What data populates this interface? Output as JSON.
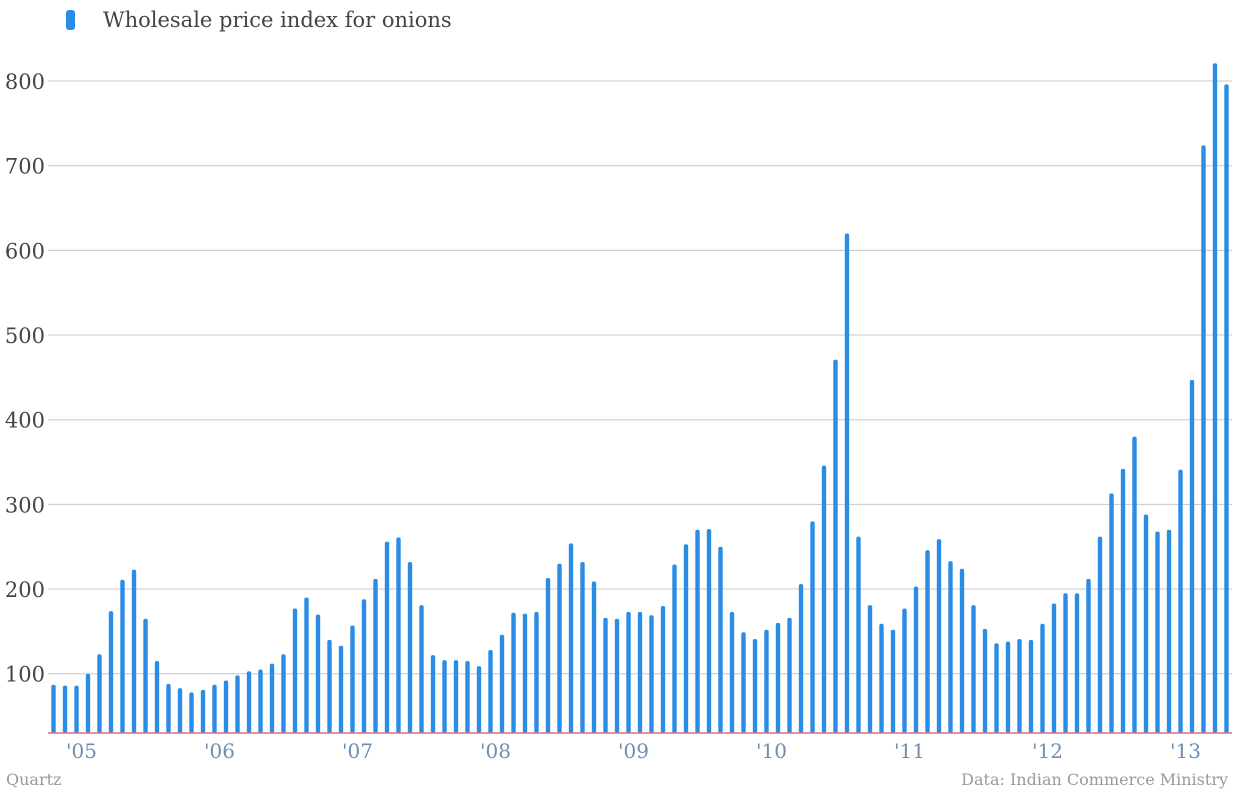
{
  "legend": {
    "label": "Wholesale price index for onions",
    "icon": "legend-series-swatch"
  },
  "footer": {
    "source": "Quartz",
    "credit": "Data: Indian Commerce Ministry"
  },
  "colors": {
    "bar": "#2b8ce6",
    "grid": "#c8c8c8",
    "baseline": "#d96a8a",
    "ytick": "#444444",
    "xtick": "#6f8fb0"
  },
  "chart_data": {
    "type": "bar",
    "title": "",
    "xlabel": "",
    "ylabel": "",
    "series": [
      {
        "name": "Wholesale price index for onions",
        "start": "2005-01",
        "frequency": "monthly",
        "values": [
          87,
          86,
          86,
          100,
          123,
          174,
          211,
          223,
          165,
          115,
          88,
          83,
          78,
          81,
          87,
          92,
          98,
          103,
          105,
          112,
          123,
          177,
          190,
          170,
          140,
          133,
          157,
          188,
          212,
          256,
          261,
          232,
          181,
          122,
          116,
          116,
          115,
          109,
          128,
          146,
          172,
          171,
          173,
          213,
          230,
          254,
          232,
          209,
          166,
          165,
          173,
          173,
          169,
          180,
          229,
          253,
          270,
          271,
          250,
          173,
          149,
          141,
          152,
          160,
          166,
          206,
          280,
          346,
          471,
          620,
          262,
          181,
          159,
          152,
          177,
          203,
          246,
          259,
          233,
          224,
          181,
          153,
          136,
          138,
          141,
          140,
          159,
          183,
          195,
          195,
          212,
          262,
          313,
          342,
          380,
          288,
          268,
          270,
          341,
          447,
          724,
          821,
          796
        ]
      }
    ],
    "x_ticks": [
      "'05",
      "'06",
      "'07",
      "'08",
      "'09",
      "'10",
      "'11",
      "'12",
      "'13"
    ],
    "y_ticks": [
      100,
      200,
      300,
      400,
      500,
      600,
      700,
      800
    ],
    "ylim": [
      30,
      850
    ],
    "grid": true,
    "legend_position": "top-left"
  }
}
